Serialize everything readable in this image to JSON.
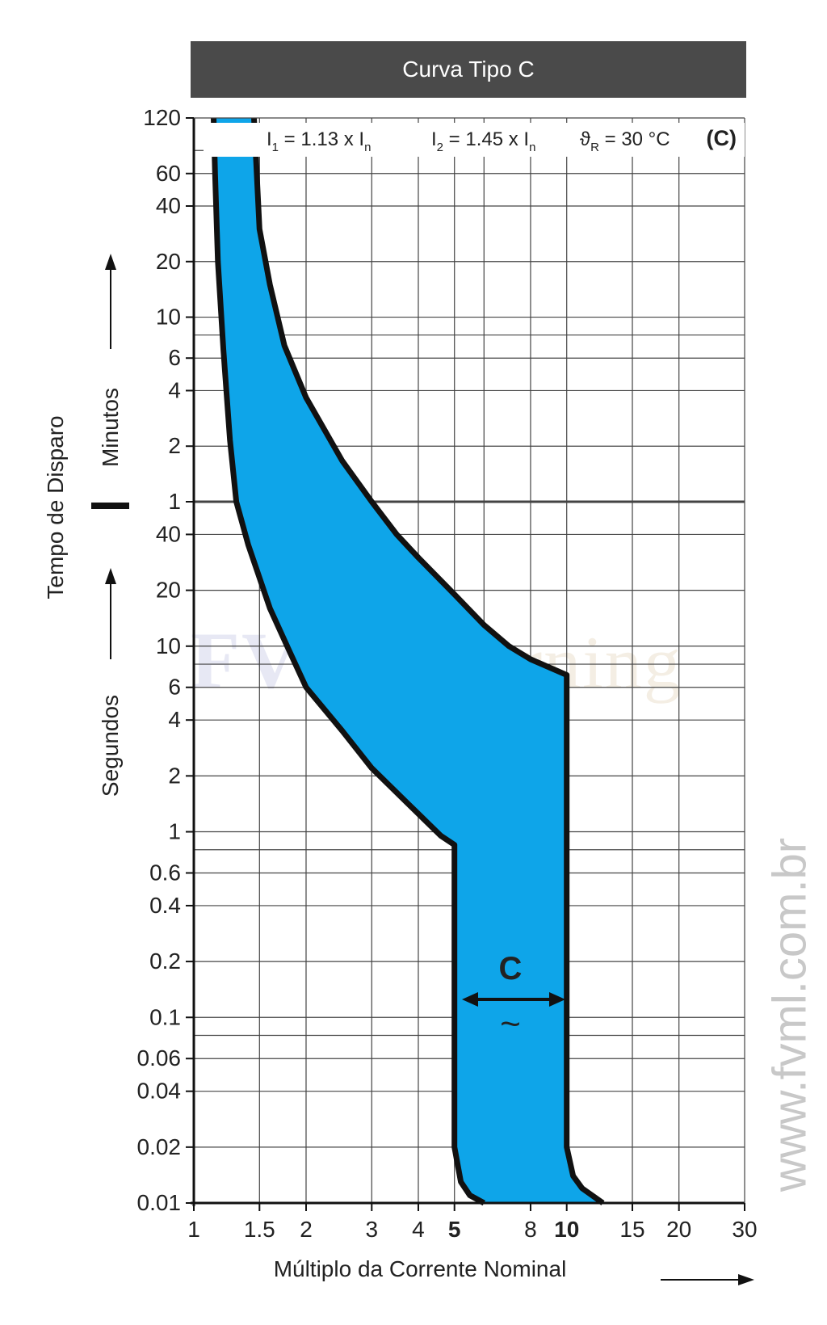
{
  "chart_data": {
    "type": "area",
    "title": "Curva Tipo C",
    "xlabel": "Múltiplo da Corrente Nominal",
    "ylabel": "Tempo de Disparo",
    "y_sections": {
      "seconds": "Segundos",
      "minutes": "Minutos"
    },
    "x_scale": "log",
    "x_range": [
      1,
      30
    ],
    "x_ticks": [
      {
        "value": 1,
        "label": "1",
        "bold": false
      },
      {
        "value": 1.5,
        "label": "1.5",
        "bold": false
      },
      {
        "value": 2,
        "label": "2",
        "bold": false
      },
      {
        "value": 3,
        "label": "3",
        "bold": false
      },
      {
        "value": 4,
        "label": "4",
        "bold": false
      },
      {
        "value": 5,
        "label": "5",
        "bold": true
      },
      {
        "value": 8,
        "label": "8",
        "bold": false
      },
      {
        "value": 10,
        "label": "10",
        "bold": true
      },
      {
        "value": 15,
        "label": "15",
        "bold": false
      },
      {
        "value": 20,
        "label": "20",
        "bold": false
      },
      {
        "value": 30,
        "label": "30",
        "bold": false
      }
    ],
    "x_gridlines": [
      1.5,
      2,
      3,
      4,
      5,
      6,
      8,
      10,
      15,
      20
    ],
    "y_scale": "log",
    "y_range_seconds": [
      0.01,
      7200
    ],
    "y_ticks": [
      {
        "seconds": 0.01,
        "label": "0.01"
      },
      {
        "seconds": 0.02,
        "label": "0.02"
      },
      {
        "seconds": 0.04,
        "label": "0.04"
      },
      {
        "seconds": 0.06,
        "label": "0.06"
      },
      {
        "seconds": 0.1,
        "label": "0.1"
      },
      {
        "seconds": 0.2,
        "label": "0.2"
      },
      {
        "seconds": 0.4,
        "label": "0.4"
      },
      {
        "seconds": 0.6,
        "label": "0.6"
      },
      {
        "seconds": 1,
        "label": "1"
      },
      {
        "seconds": 2,
        "label": "2"
      },
      {
        "seconds": 4,
        "label": "4"
      },
      {
        "seconds": 6,
        "label": "6"
      },
      {
        "seconds": 10,
        "label": "10"
      },
      {
        "seconds": 20,
        "label": "20"
      },
      {
        "seconds": 40,
        "label": "40"
      },
      {
        "seconds": 60,
        "label": "1"
      },
      {
        "seconds": 120,
        "label": "2"
      },
      {
        "seconds": 240,
        "label": "4"
      },
      {
        "seconds": 360,
        "label": "6"
      },
      {
        "seconds": 600,
        "label": "10"
      },
      {
        "seconds": 1200,
        "label": "20"
      },
      {
        "seconds": 2400,
        "label": "40"
      },
      {
        "seconds": 3600,
        "label": "60"
      },
      {
        "seconds": 7200,
        "label": "120"
      }
    ],
    "y_gridlines_seconds": [
      0.02,
      0.04,
      0.06,
      0.08,
      0.1,
      0.2,
      0.4,
      0.6,
      0.8,
      1,
      2,
      4,
      6,
      8,
      10,
      20,
      40,
      60,
      120,
      240,
      360,
      480,
      600,
      1200,
      2400,
      3600,
      4800
    ],
    "annotations": {
      "i1": {
        "text": "I",
        "sub": "1",
        "rest": " = 1.13 x I",
        "sub2": "n"
      },
      "i2": {
        "text": "I",
        "sub": "2",
        "rest": " = 1.45 x I",
        "sub2": "n"
      },
      "theta": {
        "text": "ϑ",
        "sub": "R",
        "rest": " = 30 °C"
      },
      "curve_code": "(C)",
      "band_label": "C",
      "band_symbol": "~"
    },
    "series": [
      {
        "role": "lower_bound",
        "points": [
          [
            1.13,
            7200
          ],
          [
            1.14,
            3600
          ],
          [
            1.16,
            1200
          ],
          [
            1.2,
            400
          ],
          [
            1.25,
            130
          ],
          [
            1.3,
            60
          ],
          [
            1.4,
            35
          ],
          [
            1.6,
            16
          ],
          [
            1.8,
            9.5
          ],
          [
            2.0,
            6
          ],
          [
            2.5,
            3.5
          ],
          [
            3,
            2.2
          ],
          [
            4,
            1.25
          ],
          [
            4.6,
            0.95
          ],
          [
            5,
            0.85
          ],
          [
            5,
            0.02
          ],
          [
            5.2,
            0.013
          ],
          [
            5.5,
            0.011
          ],
          [
            6,
            0.01
          ]
        ]
      },
      {
        "role": "upper_bound",
        "points": [
          [
            1.45,
            7200
          ],
          [
            1.5,
            1800
          ],
          [
            1.6,
            900
          ],
          [
            1.75,
            420
          ],
          [
            2.0,
            220
          ],
          [
            2.5,
            100
          ],
          [
            3,
            60
          ],
          [
            3.5,
            40
          ],
          [
            4,
            30
          ],
          [
            5,
            19
          ],
          [
            6,
            13
          ],
          [
            7,
            10
          ],
          [
            8,
            8.5
          ],
          [
            10,
            7
          ],
          [
            10,
            0.02
          ],
          [
            10.4,
            0.014
          ],
          [
            11,
            0.012
          ],
          [
            12.5,
            0.01
          ]
        ]
      }
    ],
    "fill_color": "#0ea5e9",
    "stroke_color": "#111111"
  },
  "watermark": {
    "bold": "FVM",
    "regular": "Learning"
  },
  "side_text": "www.fvml.com.br"
}
